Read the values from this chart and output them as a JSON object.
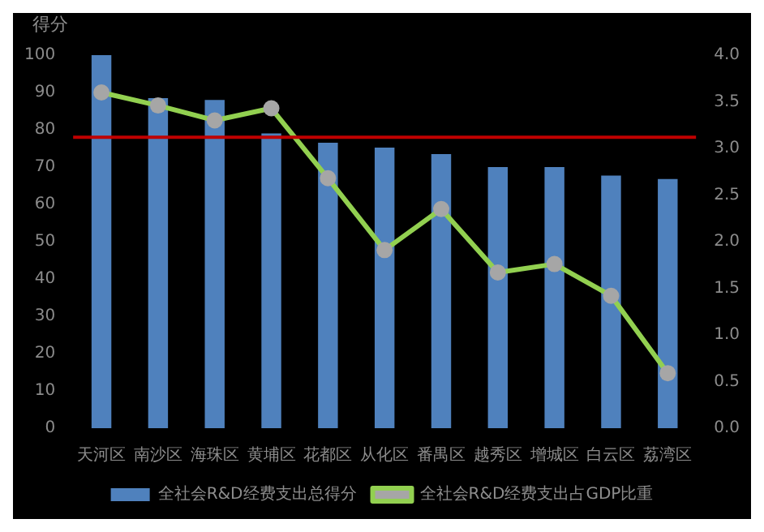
{
  "chart_data": {
    "type": "bar",
    "ylabel": "得分",
    "categories": [
      "天河区",
      "南沙区",
      "海珠区",
      "黄埔区",
      "花都区",
      "从化区",
      "番禺区",
      "越秀区",
      "增城区",
      "白云区",
      "荔湾区"
    ],
    "series": [
      {
        "name": "全社会R&D经费支出总得分",
        "color": "#4f81bd",
        "values": [
          100,
          88.5,
          88,
          79,
          76.5,
          75.2,
          73.5,
          70,
          70,
          67.7,
          66.8
        ]
      },
      {
        "name": "全社会R&D经费支出占GDP比重",
        "type": "line",
        "axis": "y2",
        "color": "#92d050",
        "marker": "circle",
        "values": [
          3.6,
          3.46,
          3.3,
          3.43,
          2.68,
          1.91,
          2.35,
          1.67,
          1.76,
          1.42,
          0.59
        ]
      }
    ],
    "ylim": [
      0,
      100
    ],
    "yticks": [
      0,
      10,
      20,
      30,
      40,
      50,
      60,
      70,
      80,
      90,
      100
    ],
    "y2lim": [
      0,
      4
    ],
    "y2ticks": [
      {
        "value": 0,
        "label": "0.0"
      },
      {
        "value": 0.5,
        "label": "0.5"
      },
      {
        "value": 1,
        "label": "1.0"
      },
      {
        "value": 1.5,
        "label": "1.5"
      },
      {
        "value": 2,
        "label": "2.0"
      },
      {
        "value": 2.5,
        "label": "2.5"
      },
      {
        "value": 3,
        "label": "3.0"
      },
      {
        "value": 3.5,
        "label": "3.5"
      },
      {
        "value": 4,
        "label": "4.0"
      }
    ],
    "ref_lines": [
      {
        "axis": "y2",
        "value": 3.12,
        "color": "#c00000"
      }
    ],
    "legend": "bottom",
    "grid": false
  }
}
